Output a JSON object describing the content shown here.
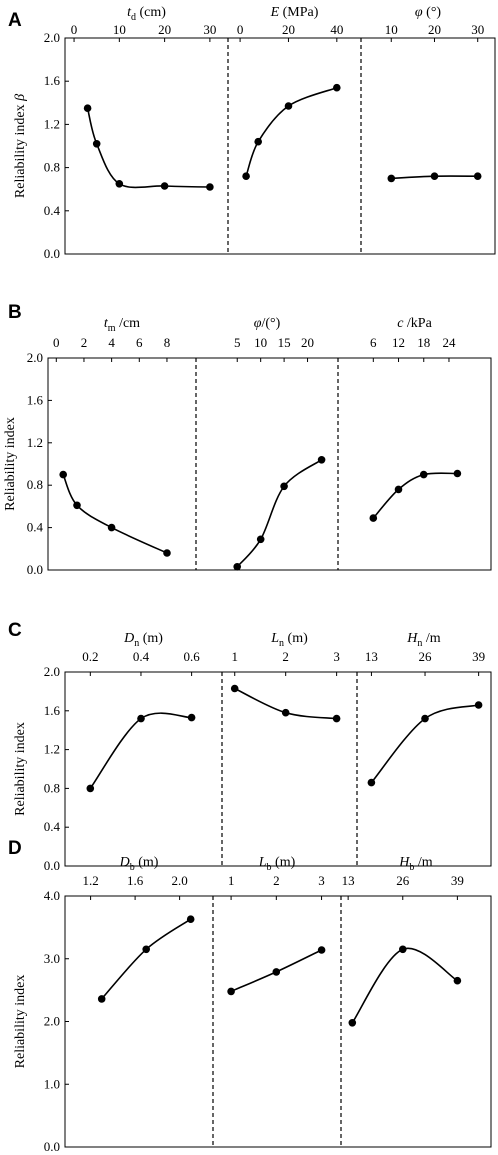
{
  "chart_data": [
    {
      "type": "line",
      "label": "A",
      "ylabel": "Reliability index β",
      "yticks": [
        "0.0",
        "0.4",
        "0.8",
        "1.2",
        "1.6",
        "2.0"
      ],
      "ylim": [
        0,
        2
      ],
      "subplots": [
        {
          "xlabel": "t_d (cm)",
          "xticks": [
            {
              "label": "0",
              "v": 0
            },
            {
              "label": "10",
              "v": 10
            },
            {
              "label": "20",
              "v": 20
            },
            {
              "label": "30",
              "v": 30
            }
          ],
          "xlim": [
            -2,
            34
          ],
          "x": [
            3,
            5,
            10,
            20,
            30
          ],
          "y": [
            1.35,
            1.02,
            0.65,
            0.63,
            0.62
          ]
        },
        {
          "xlabel": "E (MPa)",
          "xticks": [
            {
              "label": "0",
              "v": 0
            },
            {
              "label": "20",
              "v": 20
            },
            {
              "label": "40",
              "v": 40
            }
          ],
          "xlim": [
            -5,
            50
          ],
          "x": [
            2.5,
            7.5,
            20,
            40
          ],
          "y": [
            0.72,
            1.04,
            1.37,
            1.54
          ]
        },
        {
          "xlabel": "φ (°)",
          "xticks": [
            {
              "label": "10",
              "v": 10
            },
            {
              "label": "20",
              "v": 20
            },
            {
              "label": "30",
              "v": 30
            }
          ],
          "xlim": [
            3,
            34
          ],
          "x": [
            10,
            20,
            30
          ],
          "y": [
            0.7,
            0.72,
            0.72
          ]
        }
      ]
    },
    {
      "type": "line",
      "label": "B",
      "ylabel": "Reliability index",
      "yticks": [
        "0.0",
        "0.4",
        "0.8",
        "1.2",
        "1.6",
        "2.0"
      ],
      "ylim": [
        0,
        2
      ],
      "subplots": [
        {
          "xlabel": "t_m /cm",
          "xticks": [
            {
              "label": "0",
              "v": 0
            },
            {
              "label": "2",
              "v": 2
            },
            {
              "label": "4",
              "v": 4
            },
            {
              "label": "6",
              "v": 6
            },
            {
              "label": "8",
              "v": 8
            }
          ],
          "xlim": [
            -0.6,
            10.1
          ],
          "x": [
            0.5,
            1.5,
            4,
            8
          ],
          "y": [
            0.9,
            0.61,
            0.4,
            0.16
          ]
        },
        {
          "xlabel": "φ/(°)",
          "xticks": [
            {
              "label": "5",
              "v": 5
            },
            {
              "label": "10",
              "v": 10
            },
            {
              "label": "15",
              "v": 15
            },
            {
              "label": "20",
              "v": 20
            }
          ],
          "xlim": [
            -3.8,
            26.5
          ],
          "x": [
            5,
            10,
            15,
            23
          ],
          "y": [
            0.03,
            0.29,
            0.79,
            1.04
          ]
        },
        {
          "xlabel": "c /kPa",
          "xticks": [
            {
              "label": "6",
              "v": 6
            },
            {
              "label": "12",
              "v": 12
            },
            {
              "label": "18",
              "v": 18
            },
            {
              "label": "24",
              "v": 24
            }
          ],
          "xlim": [
            -2.4,
            34
          ],
          "x": [
            6,
            12,
            18,
            26
          ],
          "y": [
            0.49,
            0.76,
            0.9,
            0.91
          ]
        }
      ]
    },
    {
      "type": "line",
      "label": "C",
      "ylabel": "Reliability index",
      "yticks": [
        "0.0",
        "0.4",
        "0.8",
        "1.2",
        "1.6",
        "2.0"
      ],
      "ylim": [
        0,
        2
      ],
      "subplots": [
        {
          "xlabel": "D_n (m)",
          "xticks": [
            {
              "label": "0.2",
              "v": 0.2
            },
            {
              "label": "0.4",
              "v": 0.4
            },
            {
              "label": "0.6",
              "v": 0.6
            }
          ],
          "xlim": [
            0.1,
            0.72
          ],
          "x": [
            0.2,
            0.4,
            0.6
          ],
          "y": [
            0.8,
            1.52,
            1.53
          ]
        },
        {
          "xlabel": "L_n (m)",
          "xticks": [
            {
              "label": "1",
              "v": 1
            },
            {
              "label": "2",
              "v": 2
            },
            {
              "label": "3",
              "v": 3
            }
          ],
          "xlim": [
            0.75,
            3.4
          ],
          "x": [
            1,
            2,
            3
          ],
          "y": [
            1.83,
            1.58,
            1.52
          ]
        },
        {
          "xlabel": "H_n /m",
          "xticks": [
            {
              "label": "13",
              "v": 13
            },
            {
              "label": "26",
              "v": 26
            },
            {
              "label": "39",
              "v": 39
            }
          ],
          "xlim": [
            9.5,
            42
          ],
          "x": [
            13,
            26,
            39
          ],
          "y": [
            0.86,
            1.52,
            1.66
          ]
        }
      ]
    },
    {
      "type": "line",
      "label": "D",
      "ylabel": "Reliability index",
      "yticks": [
        "0.0",
        "1.0",
        "2.0",
        "3.0",
        "4.0"
      ],
      "ylim": [
        0,
        4
      ],
      "subplots": [
        {
          "xlabel": "D_b (m)",
          "xticks": [
            {
              "label": "1.2",
              "v": 1.2
            },
            {
              "label": "1.6",
              "v": 1.6
            },
            {
              "label": "2.0",
              "v": 2.0
            }
          ],
          "xlim": [
            0.97,
            2.3
          ],
          "x": [
            1.3,
            1.7,
            2.1
          ],
          "y": [
            2.36,
            3.15,
            3.63
          ]
        },
        {
          "xlabel": "L_b (m)",
          "xticks": [
            {
              "label": "1",
              "v": 1
            },
            {
              "label": "2",
              "v": 2
            },
            {
              "label": "3",
              "v": 3
            }
          ],
          "xlim": [
            0.6,
            3.43
          ],
          "x": [
            1,
            2,
            3
          ],
          "y": [
            2.48,
            2.79,
            3.14
          ]
        },
        {
          "xlabel": "H_b /m",
          "xticks": [
            {
              "label": "13",
              "v": 13
            },
            {
              "label": "26",
              "v": 26
            },
            {
              "label": "39",
              "v": 39
            }
          ],
          "xlim": [
            11.3,
            47
          ],
          "x": [
            14,
            26,
            39
          ],
          "y": [
            1.98,
            3.15,
            2.65
          ]
        }
      ]
    }
  ]
}
